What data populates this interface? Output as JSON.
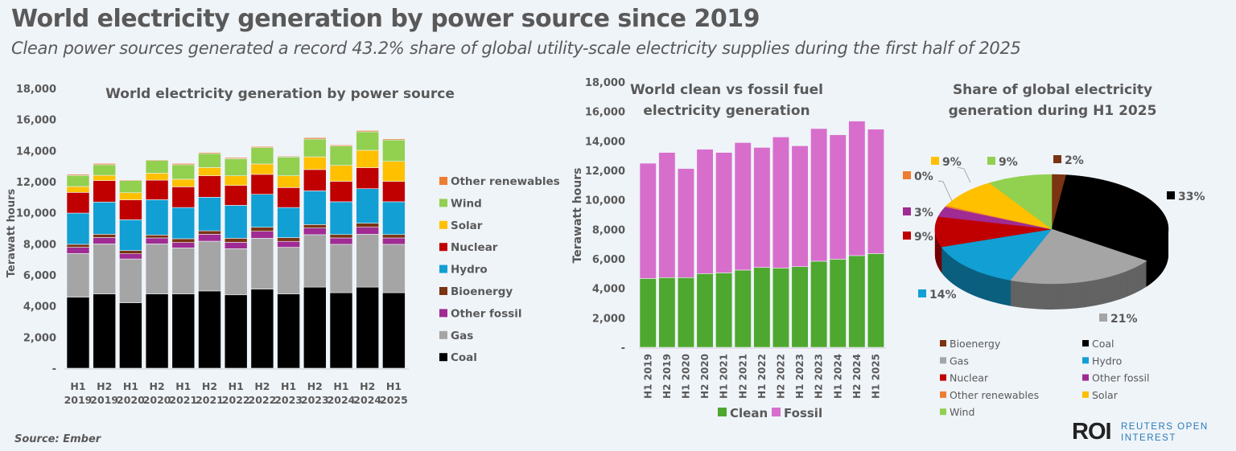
{
  "title": "World electricity generation by power source since 2019",
  "subtitle": "Clean power sources generated a record 43.2% share of global utility-scale electricity supplies during the first half of 2025",
  "source": "Source: Ember",
  "logo": {
    "mark": "ROI",
    "line1": "REUTERS OPEN",
    "line2": "INTEREST"
  },
  "colors": {
    "Coal": "#000000",
    "Gas": "#a5a5a5",
    "Other fossil": "#a02b93",
    "Bioenergy": "#7b3312",
    "Hydro": "#129fd4",
    "Nuclear": "#c00000",
    "Solar": "#ffc000",
    "Wind": "#92d050",
    "Other renewables": "#ed7d31",
    "Clean": "#4ea72e",
    "Fossil": "#d86ecc",
    "background": "#eff4f9"
  },
  "chart_data": [
    {
      "type": "bar",
      "stacked": true,
      "title": "World electricity generation by power source",
      "ylabel": "Terawatt hours",
      "ylim": [
        0,
        18000
      ],
      "yticks": [
        "-",
        "2,000",
        "4,000",
        "6,000",
        "8,000",
        "10,000",
        "12,000",
        "14,000",
        "16,000",
        "18,000"
      ],
      "categories": [
        [
          "H1",
          "2019"
        ],
        [
          "H2",
          "2019"
        ],
        [
          "H1",
          "2020"
        ],
        [
          "H2",
          "2020"
        ],
        [
          "H1",
          "2021"
        ],
        [
          "H2",
          "2021"
        ],
        [
          "H1",
          "2022"
        ],
        [
          "H2",
          "2022"
        ],
        [
          "H1",
          "2023"
        ],
        [
          "H2",
          "2023"
        ],
        [
          "H1",
          "2024"
        ],
        [
          "H2",
          "2024"
        ],
        [
          "H1",
          "2025"
        ]
      ],
      "legend": "right",
      "series": [
        {
          "name": "Coal",
          "values": [
            4570,
            4780,
            4210,
            4780,
            4780,
            4970,
            4720,
            5090,
            4780,
            5220,
            4860,
            5220,
            4860
          ]
        },
        {
          "name": "Gas",
          "values": [
            2810,
            3220,
            2820,
            3220,
            2960,
            3200,
            2970,
            3270,
            3000,
            3370,
            3110,
            3400,
            3110
          ]
        },
        {
          "name": "Other fossil",
          "values": [
            400,
            410,
            330,
            380,
            350,
            450,
            410,
            450,
            380,
            430,
            410,
            450,
            410
          ]
        },
        {
          "name": "Bioenergy",
          "values": [
            190,
            210,
            210,
            190,
            240,
            220,
            260,
            260,
            240,
            220,
            220,
            260,
            220
          ]
        },
        {
          "name": "Hydro",
          "values": [
            2010,
            2070,
            1980,
            2270,
            2010,
            2160,
            2120,
            2120,
            1940,
            2170,
            2110,
            2220,
            2110
          ]
        },
        {
          "name": "Nuclear",
          "values": [
            1330,
            1380,
            1280,
            1260,
            1330,
            1380,
            1280,
            1280,
            1280,
            1370,
            1310,
            1350,
            1310
          ]
        },
        {
          "name": "Solar",
          "values": [
            380,
            340,
            460,
            450,
            490,
            530,
            620,
            670,
            760,
            820,
            1030,
            1120,
            1290
          ]
        },
        {
          "name": "Wind",
          "values": [
            710,
            680,
            780,
            810,
            930,
            900,
            1100,
            1050,
            1210,
            1140,
            1240,
            1190,
            1380
          ]
        },
        {
          "name": "Other renewables",
          "values": [
            70,
            80,
            50,
            50,
            80,
            70,
            70,
            70,
            50,
            90,
            70,
            80,
            70
          ]
        }
      ]
    },
    {
      "type": "bar",
      "stacked": true,
      "title": [
        "World clean vs fossil fuel",
        "electricity generation"
      ],
      "ylabel": "Terawatt hours",
      "ylim": [
        0,
        18000
      ],
      "yticks": [
        "-",
        "2,000",
        "4,000",
        "6,000",
        "8,000",
        "10,000",
        "12,000",
        "14,000",
        "16,000",
        "18,000"
      ],
      "categories": [
        "H1 2019",
        "H2 2019",
        "H1 2020",
        "H2 2020",
        "H1 2021",
        "H2 2021",
        "H1 2022",
        "H2 2022",
        "H1 2023",
        "H2 2023",
        "H1 2024",
        "H2 2024",
        "H1 2025"
      ],
      "legend": "bottom",
      "series": [
        {
          "name": "Clean",
          "values": [
            4670,
            4730,
            4730,
            5000,
            5050,
            5240,
            5420,
            5380,
            5470,
            5840,
            5980,
            6220,
            6360
          ]
        },
        {
          "name": "Fossil",
          "values": [
            7820,
            8490,
            7400,
            8440,
            8170,
            8650,
            8140,
            8890,
            8200,
            9000,
            8440,
            9130,
            8440
          ]
        }
      ]
    },
    {
      "type": "pie",
      "style": "3d",
      "title": [
        "Share of global electricity",
        "generation during H1 2025"
      ],
      "legend": "bottom",
      "slices": [
        {
          "name": "Bioenergy",
          "value": 2,
          "label": "2%"
        },
        {
          "name": "Coal",
          "value": 33,
          "label": "33%"
        },
        {
          "name": "Gas",
          "value": 21,
          "label": "21%"
        },
        {
          "name": "Hydro",
          "value": 14,
          "label": "14%"
        },
        {
          "name": "Nuclear",
          "value": 9,
          "label": "9%"
        },
        {
          "name": "Other fossil",
          "value": 3,
          "label": "3%"
        },
        {
          "name": "Other renewables",
          "value": 0.4,
          "label": "0%"
        },
        {
          "name": "Solar",
          "value": 9,
          "label": "9%"
        },
        {
          "name": "Wind",
          "value": 9,
          "label": "9%"
        }
      ],
      "legend_order": [
        "Bioenergy",
        "Coal",
        "Gas",
        "Hydro",
        "Nuclear",
        "Other fossil",
        "Other renewables",
        "Solar",
        "Wind"
      ]
    }
  ]
}
